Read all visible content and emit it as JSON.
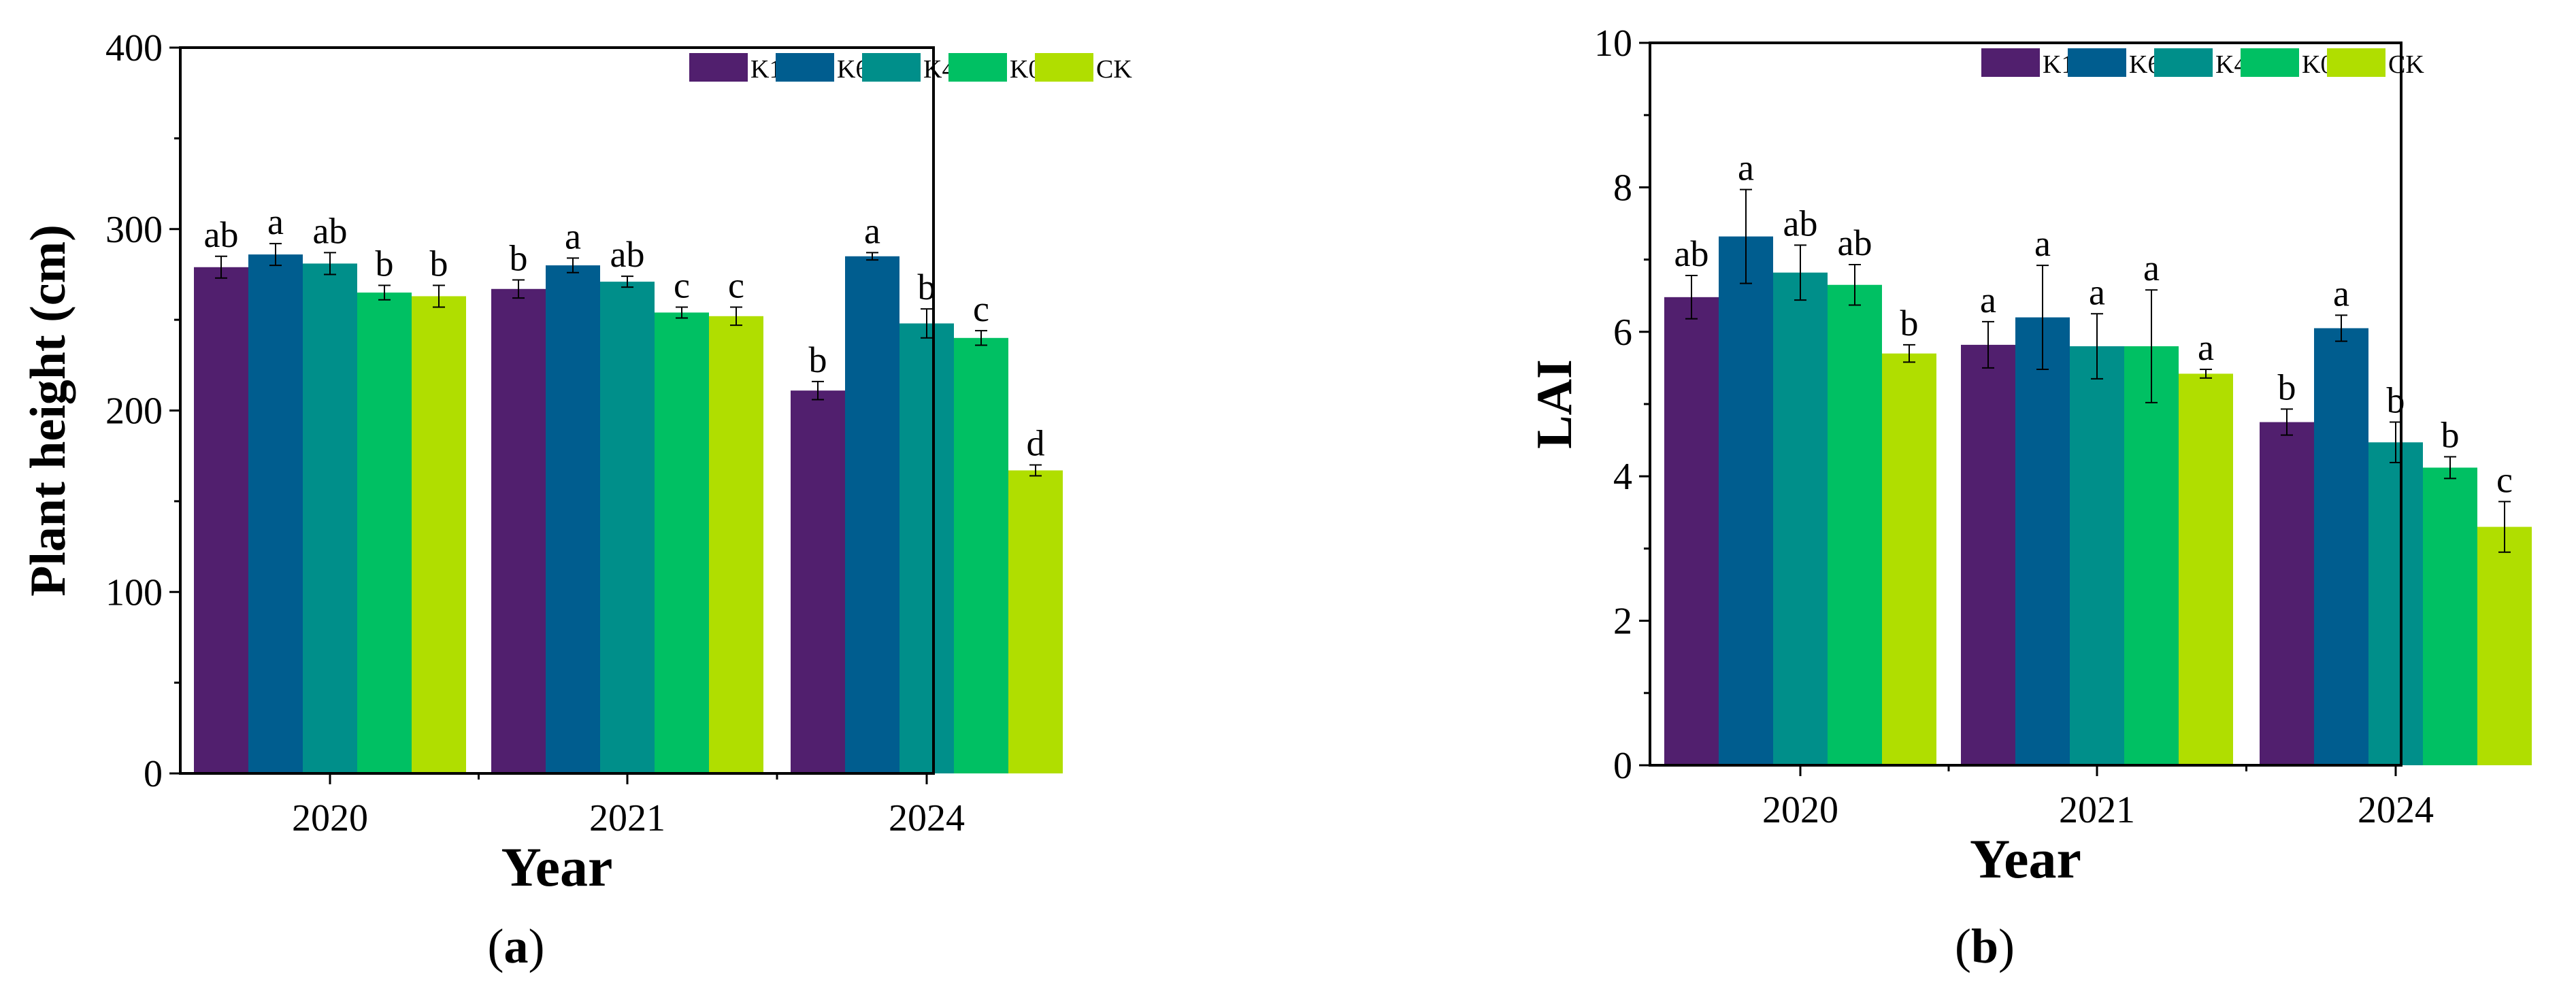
{
  "chart_data": [
    {
      "type": "bar",
      "panel_label": "(a)",
      "ylabel": "Plant height (cm)",
      "xlabel": "Year",
      "categories": [
        "2020",
        "2021",
        "2024"
      ],
      "ylim": [
        0,
        400
      ],
      "yticks": [
        "0",
        "100",
        "200",
        "300",
        "400"
      ],
      "grid": false,
      "legend_position": "top-right",
      "series": [
        {
          "name": "K100",
          "color": "#511f6e",
          "values": [
            279,
            267,
            211
          ],
          "errors": [
            6,
            5,
            5
          ],
          "letters": [
            "ab",
            "b",
            "b"
          ]
        },
        {
          "name": "K60",
          "color": "#005d8f",
          "values": [
            286,
            280,
            285
          ],
          "errors": [
            6,
            4,
            2
          ],
          "letters": [
            "a",
            "a",
            "a"
          ]
        },
        {
          "name": "K40",
          "color": "#008f8a",
          "values": [
            281,
            271,
            248
          ],
          "errors": [
            6,
            3,
            8
          ],
          "letters": [
            "ab",
            "ab",
            "b"
          ]
        },
        {
          "name": "K0",
          "color": "#00c063",
          "values": [
            265,
            254,
            240
          ],
          "errors": [
            4,
            3,
            4
          ],
          "letters": [
            "b",
            "c",
            "c"
          ]
        },
        {
          "name": "CK",
          "color": "#b0de00",
          "values": [
            263,
            252,
            167
          ],
          "errors": [
            6,
            5,
            3
          ],
          "letters": [
            "b",
            "c",
            "d"
          ]
        }
      ]
    },
    {
      "type": "bar",
      "panel_label": "(b)",
      "ylabel": "LAI",
      "xlabel": "Year",
      "categories": [
        "2020",
        "2021",
        "2024"
      ],
      "ylim": [
        0,
        10
      ],
      "yticks": [
        "0",
        "2",
        "4",
        "6",
        "8",
        "10"
      ],
      "grid": false,
      "legend_position": "top-right",
      "series": [
        {
          "name": "K100",
          "color": "#511f6e",
          "values": [
            6.48,
            5.82,
            4.75
          ],
          "errors": [
            0.3,
            0.32,
            0.18
          ],
          "letters": [
            "ab",
            "a",
            "b"
          ]
        },
        {
          "name": "K60",
          "color": "#005d8f",
          "values": [
            7.32,
            6.2,
            6.05
          ],
          "errors": [
            0.65,
            0.72,
            0.18
          ],
          "letters": [
            "a",
            "a",
            "a"
          ]
        },
        {
          "name": "K40",
          "color": "#008f8a",
          "values": [
            6.82,
            5.8,
            4.47
          ],
          "errors": [
            0.38,
            0.45,
            0.28
          ],
          "letters": [
            "ab",
            "a",
            "b"
          ]
        },
        {
          "name": "K0",
          "color": "#00c063",
          "values": [
            6.65,
            5.8,
            4.12
          ],
          "errors": [
            0.28,
            0.78,
            0.15
          ],
          "letters": [
            "ab",
            "a",
            "b"
          ]
        },
        {
          "name": "CK",
          "color": "#b0de00",
          "values": [
            5.7,
            5.42,
            3.3
          ],
          "errors": [
            0.12,
            0.06,
            0.35
          ],
          "letters": [
            "b",
            "a",
            "c"
          ]
        }
      ]
    }
  ]
}
